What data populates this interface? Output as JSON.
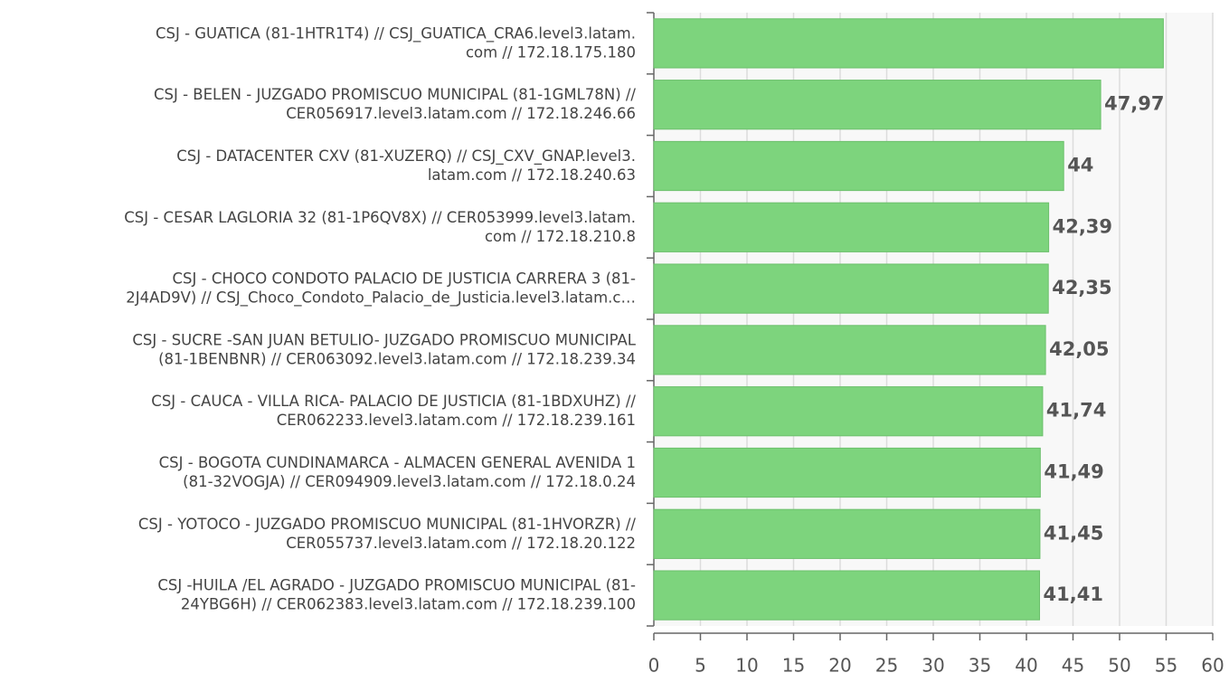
{
  "chart_data": {
    "type": "bar",
    "orientation": "horizontal",
    "categories": [
      "CSJ - GUATICA (81-1HTR1T4) // CSJ_GUATICA_CRA6.level3.latam.\ncom // 172.18.175.180",
      "CSJ - BELEN - JUZGADO PROMISCUO MUNICIPAL (81-1GML78N) //\nCER056917.level3.latam.com // 172.18.246.66",
      "CSJ - DATACENTER CXV (81-XUZERQ) // CSJ_CXV_GNAP.level3.\nlatam.com // 172.18.240.63",
      "CSJ - CESAR LAGLORIA 32 (81-1P6QV8X) // CER053999.level3.latam.\ncom // 172.18.210.8",
      "CSJ - CHOCO CONDOTO PALACIO DE JUSTICIA CARRERA 3 (81-\n2J4AD9V) // CSJ_Choco_Condoto_Palacio_de_Justicia.level3.latam.c…",
      "CSJ - SUCRE -SAN JUAN BETULIO-  JUZGADO PROMISCUO MUNICIPAL\n(81-1BENBNR) // CER063092.level3.latam.com // 172.18.239.34",
      "CSJ - CAUCA -  VILLA RICA- PALACIO DE JUSTICIA (81-1BDXUHZ) //\nCER062233.level3.latam.com // 172.18.239.161",
      "CSJ - BOGOTA CUNDINAMARCA -  ALMACEN GENERAL AVENIDA 1\n(81-32VOGJA) // CER094909.level3.latam.com // 172.18.0.24",
      "CSJ - YOTOCO - JUZGADO PROMISCUO MUNICIPAL (81-1HVORZR) //\nCER055737.level3.latam.com // 172.18.20.122",
      "CSJ -HUILA /EL AGRADO -  JUZGADO PROMISCUO MUNICIPAL (81-\n24YBG6H) // CER062383.level3.latam.com // 172.18.239.100"
    ],
    "values": [
      54.7,
      47.97,
      44,
      42.39,
      42.35,
      42.05,
      41.74,
      41.49,
      41.45,
      41.41
    ],
    "value_labels": [
      null,
      "47,97",
      "44",
      "42,39",
      "42,35",
      "42,05",
      "41,74",
      "41,49",
      "41,45",
      "41,41"
    ],
    "color": "#7dd47d",
    "xlim": [
      0,
      60
    ],
    "xticks": [
      0,
      5,
      10,
      15,
      20,
      25,
      30,
      35,
      40,
      45,
      50,
      55,
      60
    ],
    "grid": true
  }
}
